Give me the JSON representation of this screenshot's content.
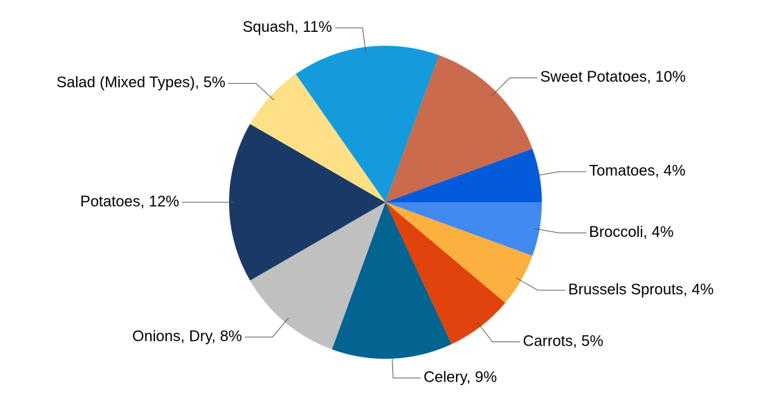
{
  "chart_data": {
    "type": "pie",
    "values": [
      4,
      4,
      5,
      9,
      8,
      12,
      5,
      11,
      10,
      4
    ],
    "value_labels": [
      "Broccoli, 4%",
      "Brussels Sprouts, 4%",
      "Carrots, 5%",
      "Celery, 9%",
      "Onions, Dry, 8%",
      "Potatoes, 12%",
      "Salad (Mixed Types), 5%",
      "Squash, 11%",
      "Sweet Potatoes, 10%",
      "Tomatoes, 4%"
    ],
    "colors": [
      "#418af0",
      "#fbb040",
      "#e0440c",
      "#036391",
      "#c0c0c0",
      "#1b3966",
      "#fee086",
      "#159bdc",
      "#c96b4c",
      "#035bdb"
    ]
  }
}
